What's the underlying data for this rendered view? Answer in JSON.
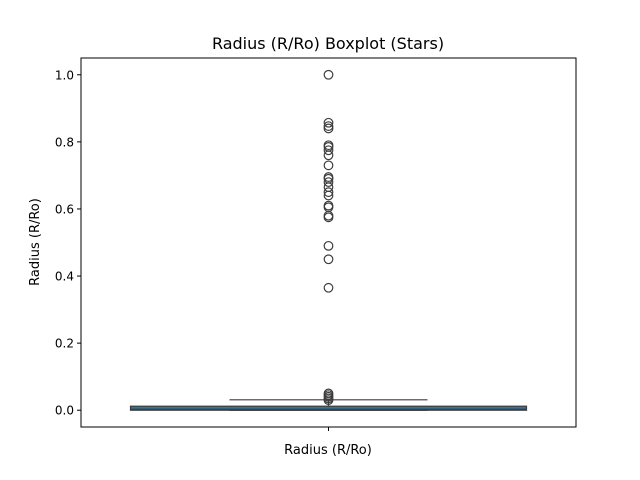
{
  "chart_data": {
    "type": "boxplot",
    "title": "Radius (R/Ro) Boxplot (Stars)",
    "xlabel": "Radius (R/Ro)",
    "ylabel": "Radius (R/Ro)",
    "ylim": [
      -0.05,
      1.05
    ],
    "yticks": [
      0.0,
      0.2,
      0.4,
      0.6,
      0.8,
      1.0
    ],
    "ytick_labels": [
      "0.0",
      "0.2",
      "0.4",
      "0.6",
      "0.8",
      "1.0"
    ],
    "grid": false,
    "box_color": "#3274a1",
    "box": {
      "q1": 0.0,
      "median": 0.003,
      "q3": 0.012,
      "whisker_low": 0.0,
      "whisker_high": 0.031
    },
    "outliers": [
      1.0,
      0.857,
      0.847,
      0.84,
      0.79,
      0.785,
      0.775,
      0.76,
      0.73,
      0.695,
      0.69,
      0.68,
      0.665,
      0.65,
      0.64,
      0.61,
      0.605,
      0.58,
      0.575,
      0.49,
      0.45,
      0.365,
      0.05,
      0.045,
      0.04,
      0.035,
      0.03
    ]
  }
}
